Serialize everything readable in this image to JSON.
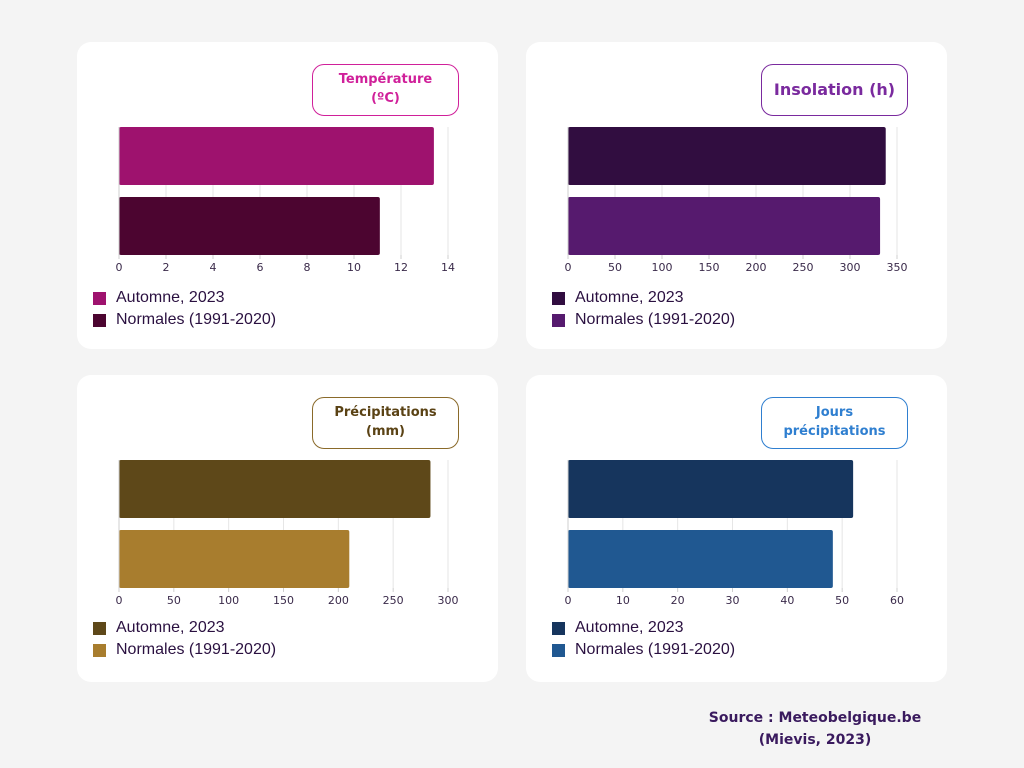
{
  "legend_labels": [
    "Automne, 2023",
    "Normales (1991-2020)"
  ],
  "source": {
    "line1": "Source : Meteobelgique.be",
    "line2": "(Mievis, 2023)"
  },
  "chart_data": [
    {
      "type": "bar",
      "orientation": "horizontal",
      "title_lines": [
        "Température",
        "(ºC)"
      ],
      "title_color": "#d0209a",
      "xlim": [
        0,
        14
      ],
      "ticks": [
        0,
        2,
        4,
        6,
        8,
        10,
        12,
        14
      ],
      "grid": true,
      "legend_position": "bottom-left",
      "series": [
        {
          "name": "Automne, 2023",
          "value": 13.4,
          "color": "#9e126e"
        },
        {
          "name": "Normales (1991-2020)",
          "value": 11.1,
          "color": "#4c0530"
        }
      ]
    },
    {
      "type": "bar",
      "orientation": "horizontal",
      "title_lines": [
        "Insolation (h)"
      ],
      "title_color": "#7a2a9e",
      "xlim": [
        0,
        350
      ],
      "ticks": [
        0,
        50,
        100,
        150,
        200,
        250,
        300,
        350
      ],
      "grid": true,
      "legend_position": "bottom-left",
      "series": [
        {
          "name": "Automne, 2023",
          "value": 338,
          "color": "#310d40"
        },
        {
          "name": "Normales (1991-2020)",
          "value": 332,
          "color": "#561a6e"
        }
      ]
    },
    {
      "type": "bar",
      "orientation": "horizontal",
      "title_lines": [
        "Précipitations",
        "(mm)"
      ],
      "title_color": "#5a4214",
      "xlim": [
        0,
        300
      ],
      "ticks": [
        0,
        50,
        100,
        150,
        200,
        250,
        300
      ],
      "grid": true,
      "legend_position": "bottom-left",
      "series": [
        {
          "name": "Automne, 2023",
          "value": 284,
          "color": "#5e4819"
        },
        {
          "name": "Normales (1991-2020)",
          "value": 210,
          "color": "#a87d2e"
        }
      ]
    },
    {
      "type": "bar",
      "orientation": "horizontal",
      "title_lines": [
        "Jours",
        "précipitations"
      ],
      "title_color": "#2f7fd0",
      "xlim": [
        0,
        60
      ],
      "ticks": [
        0,
        10,
        20,
        30,
        40,
        50,
        60
      ],
      "grid": true,
      "legend_position": "bottom-left",
      "series": [
        {
          "name": "Automne, 2023",
          "value": 52,
          "color": "#16355d"
        },
        {
          "name": "Normales (1991-2020)",
          "value": 48.3,
          "color": "#205891"
        }
      ]
    }
  ]
}
